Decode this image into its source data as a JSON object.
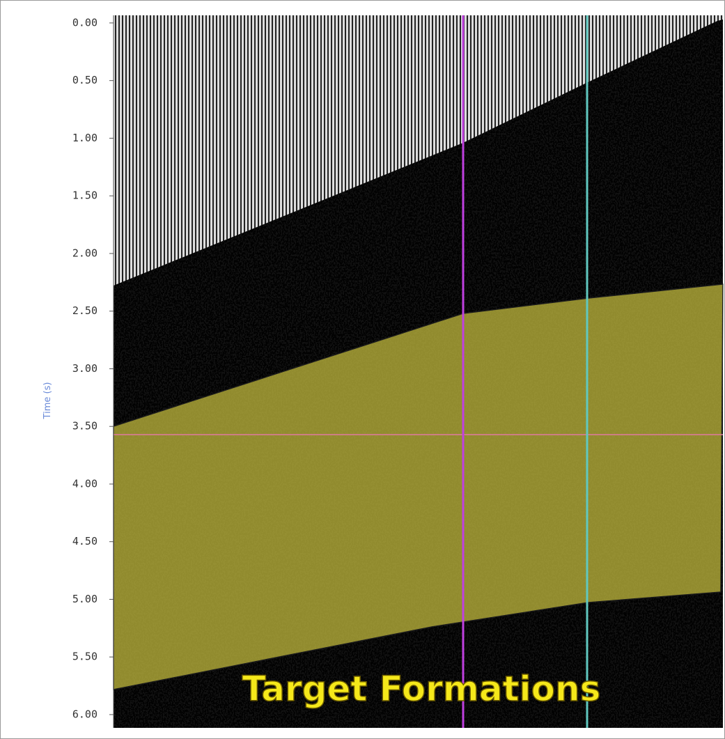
{
  "chart_data": {
    "type": "seismic",
    "ylabel": "Time (s)",
    "annotation": "Target Formations",
    "ylim": [
      -0.066,
      6.115
    ],
    "yticks": [
      {
        "value": 0,
        "label": "0.00"
      },
      {
        "value": 0.5,
        "label": "0.50"
      },
      {
        "value": 1,
        "label": "1.00"
      },
      {
        "value": 1.5,
        "label": "1.50"
      },
      {
        "value": 2,
        "label": "2.00"
      },
      {
        "value": 2.5,
        "label": "2.50"
      },
      {
        "value": 3,
        "label": "3.00"
      },
      {
        "value": 3.5,
        "label": "3.50"
      },
      {
        "value": 4,
        "label": "4.00"
      },
      {
        "value": 4.5,
        "label": "4.50"
      },
      {
        "value": 5,
        "label": "5.00"
      },
      {
        "value": 5.5,
        "label": "5.50"
      },
      {
        "value": 6,
        "label": "6.00"
      }
    ]
  }
}
